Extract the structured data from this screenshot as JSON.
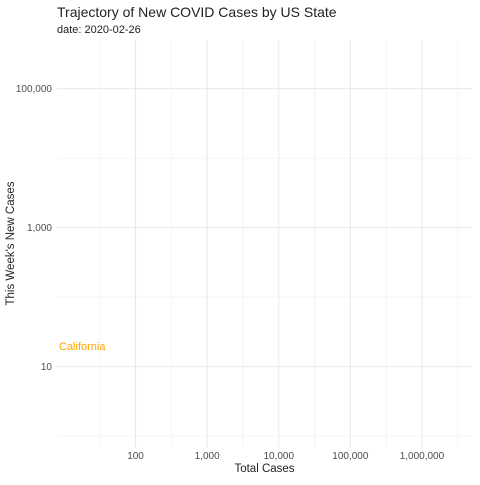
{
  "chart_data": {
    "type": "line",
    "title": "Trajectory of New COVID Cases by US State",
    "subtitle": "date: 2020-02-26",
    "xlabel": "Total Cases",
    "ylabel": "This Week's New Cases",
    "x_scale": "log10",
    "y_scale": "log10",
    "xlim": [
      8,
      5000000
    ],
    "ylim": [
      0.7,
      500000
    ],
    "x_ticks": [
      100,
      1000,
      10000,
      100000,
      1000000
    ],
    "x_tick_labels": [
      "100",
      "1,000",
      "10,000",
      "100,000",
      "1,000,000"
    ],
    "y_ticks": [
      10,
      1000,
      100000
    ],
    "y_tick_labels": [
      "10",
      "1,000",
      "100,000"
    ],
    "grid": true,
    "series": [
      {
        "name": "California",
        "color": "#FFA500",
        "points": []
      }
    ],
    "annotations": [
      {
        "text": "California",
        "series": "California",
        "color": "#FFA500",
        "x": 8,
        "y": 20
      }
    ]
  }
}
